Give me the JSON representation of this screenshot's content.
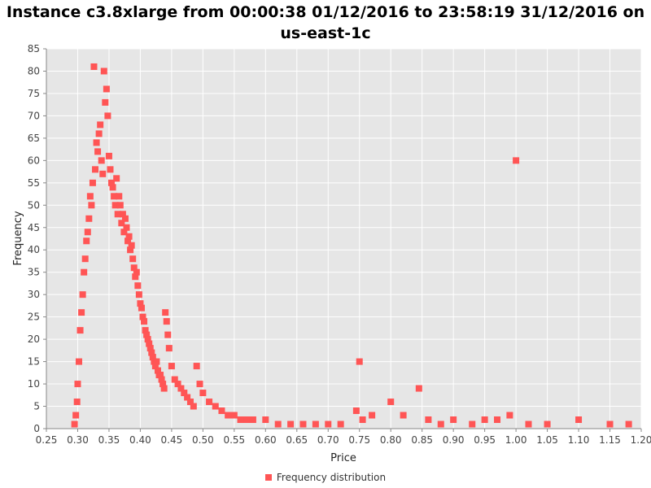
{
  "chart_data": {
    "type": "scatter",
    "title_line1": "Instance c3.8xlarge from 00:00:38 01/12/2016 to 23:58:19 31/12/2016 on",
    "title_line2": "us-east-1c",
    "xlabel": "Price",
    "ylabel": "Frequency",
    "xlim": [
      0.25,
      1.2
    ],
    "ylim": [
      0,
      85
    ],
    "x_ticks": [
      "0.25",
      "0.30",
      "0.35",
      "0.40",
      "0.45",
      "0.50",
      "0.55",
      "0.60",
      "0.65",
      "0.70",
      "0.75",
      "0.80",
      "0.85",
      "0.90",
      "0.95",
      "1.00",
      "1.05",
      "1.10",
      "1.15",
      "1.20"
    ],
    "y_ticks": [
      "0",
      "5",
      "10",
      "15",
      "20",
      "25",
      "30",
      "35",
      "40",
      "45",
      "50",
      "55",
      "60",
      "65",
      "70",
      "75",
      "80",
      "85"
    ],
    "grid": true,
    "legend_position": "bottom",
    "series": [
      {
        "name": "Frequency distribution",
        "color": "#ff5555",
        "points": [
          [
            0.295,
            1
          ],
          [
            0.297,
            3
          ],
          [
            0.299,
            6
          ],
          [
            0.3,
            10
          ],
          [
            0.302,
            15
          ],
          [
            0.304,
            22
          ],
          [
            0.306,
            26
          ],
          [
            0.308,
            30
          ],
          [
            0.31,
            35
          ],
          [
            0.312,
            38
          ],
          [
            0.314,
            42
          ],
          [
            0.316,
            44
          ],
          [
            0.318,
            47
          ],
          [
            0.32,
            52
          ],
          [
            0.322,
            50
          ],
          [
            0.324,
            55
          ],
          [
            0.326,
            81
          ],
          [
            0.328,
            58
          ],
          [
            0.33,
            64
          ],
          [
            0.332,
            62
          ],
          [
            0.334,
            66
          ],
          [
            0.336,
            68
          ],
          [
            0.338,
            60
          ],
          [
            0.34,
            57
          ],
          [
            0.342,
            80
          ],
          [
            0.344,
            73
          ],
          [
            0.346,
            76
          ],
          [
            0.348,
            70
          ],
          [
            0.35,
            61
          ],
          [
            0.352,
            58
          ],
          [
            0.354,
            55
          ],
          [
            0.356,
            54
          ],
          [
            0.358,
            52
          ],
          [
            0.36,
            50
          ],
          [
            0.362,
            56
          ],
          [
            0.364,
            48
          ],
          [
            0.366,
            52
          ],
          [
            0.368,
            50
          ],
          [
            0.37,
            46
          ],
          [
            0.372,
            48
          ],
          [
            0.374,
            44
          ],
          [
            0.376,
            47
          ],
          [
            0.378,
            45
          ],
          [
            0.38,
            42
          ],
          [
            0.382,
            43
          ],
          [
            0.384,
            40
          ],
          [
            0.386,
            41
          ],
          [
            0.388,
            38
          ],
          [
            0.39,
            36
          ],
          [
            0.392,
            34
          ],
          [
            0.394,
            35
          ],
          [
            0.396,
            32
          ],
          [
            0.398,
            30
          ],
          [
            0.4,
            28
          ],
          [
            0.402,
            27
          ],
          [
            0.404,
            25
          ],
          [
            0.406,
            24
          ],
          [
            0.408,
            22
          ],
          [
            0.41,
            21
          ],
          [
            0.412,
            20
          ],
          [
            0.414,
            19
          ],
          [
            0.416,
            18
          ],
          [
            0.418,
            17
          ],
          [
            0.42,
            16
          ],
          [
            0.422,
            15
          ],
          [
            0.424,
            14
          ],
          [
            0.426,
            15
          ],
          [
            0.428,
            13
          ],
          [
            0.43,
            12
          ],
          [
            0.432,
            12
          ],
          [
            0.434,
            11
          ],
          [
            0.436,
            10
          ],
          [
            0.438,
            9
          ],
          [
            0.44,
            26
          ],
          [
            0.442,
            24
          ],
          [
            0.444,
            21
          ],
          [
            0.446,
            18
          ],
          [
            0.45,
            14
          ],
          [
            0.455,
            11
          ],
          [
            0.46,
            10
          ],
          [
            0.465,
            9
          ],
          [
            0.47,
            8
          ],
          [
            0.475,
            7
          ],
          [
            0.48,
            6
          ],
          [
            0.485,
            5
          ],
          [
            0.49,
            14
          ],
          [
            0.495,
            10
          ],
          [
            0.5,
            8
          ],
          [
            0.51,
            6
          ],
          [
            0.52,
            5
          ],
          [
            0.53,
            4
          ],
          [
            0.54,
            3
          ],
          [
            0.55,
            3
          ],
          [
            0.56,
            2
          ],
          [
            0.57,
            2
          ],
          [
            0.58,
            2
          ],
          [
            0.6,
            2
          ],
          [
            0.62,
            1
          ],
          [
            0.64,
            1
          ],
          [
            0.66,
            1
          ],
          [
            0.68,
            1
          ],
          [
            0.7,
            1
          ],
          [
            0.72,
            1
          ],
          [
            0.745,
            4
          ],
          [
            0.75,
            15
          ],
          [
            0.755,
            2
          ],
          [
            0.77,
            3
          ],
          [
            0.8,
            6
          ],
          [
            0.82,
            3
          ],
          [
            0.845,
            9
          ],
          [
            0.86,
            2
          ],
          [
            0.88,
            1
          ],
          [
            0.9,
            2
          ],
          [
            0.93,
            1
          ],
          [
            0.95,
            2
          ],
          [
            0.97,
            2
          ],
          [
            0.99,
            3
          ],
          [
            1.0,
            60
          ],
          [
            1.02,
            1
          ],
          [
            1.05,
            1
          ],
          [
            1.1,
            2
          ],
          [
            1.15,
            1
          ],
          [
            1.18,
            1
          ]
        ]
      }
    ]
  }
}
